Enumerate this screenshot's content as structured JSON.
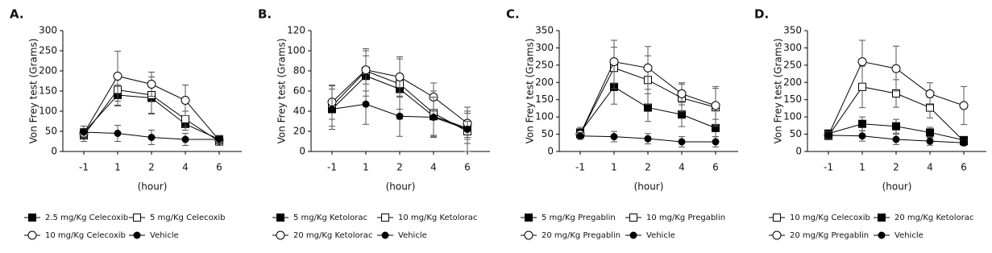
{
  "chart_data": [
    {
      "type": "line",
      "panel": "A.",
      "ylabel": "Von Frey test (Grams)",
      "xlabel": "(hour)",
      "categories": [
        "-1",
        "1",
        "2",
        "4",
        "6"
      ],
      "ylim": [
        0,
        300
      ],
      "yticks": [
        0,
        50,
        100,
        150,
        200,
        250,
        300
      ],
      "series": [
        {
          "name": "2.5 mg/Kg Celecoxib",
          "color": "#000000",
          "marker": "filled-square",
          "values": [
            47,
            140,
            133,
            68,
            30
          ],
          "errors": [
            10,
            25,
            40,
            15,
            10
          ]
        },
        {
          "name": "5 mg/Kg Celecoxib",
          "color": "#000000",
          "marker": "open-square",
          "values": [
            40,
            153,
            140,
            80,
            25
          ],
          "errors": [
            15,
            40,
            45,
            20,
            10
          ]
        },
        {
          "name": "10 mg/Kg Celecoxib",
          "color": "#000000",
          "marker": "open-circle",
          "values": [
            45,
            187,
            167,
            127,
            28
          ],
          "errors": [
            10,
            62,
            30,
            38,
            12
          ]
        },
        {
          "name": "Vehicle",
          "color": "#000000",
          "marker": "filled-circle",
          "values": [
            48,
            45,
            35,
            30,
            30
          ],
          "errors": [
            15,
            20,
            18,
            15,
            10
          ]
        }
      ]
    },
    {
      "type": "line",
      "panel": "B.",
      "ylabel": "Von Frey test (Grams)",
      "xlabel": "(hour)",
      "categories": [
        "-1",
        "1",
        "2",
        "4",
        "6"
      ],
      "ylim": [
        0,
        120
      ],
      "yticks": [
        0,
        20,
        40,
        60,
        80,
        100,
        120
      ],
      "series": [
        {
          "name": "5 mg/Kg Ketolorac",
          "color": "#000000",
          "marker": "filled-square",
          "values": [
            42,
            75,
            62,
            35,
            23
          ],
          "errors": [
            20,
            20,
            30,
            20,
            15
          ]
        },
        {
          "name": "10 mg/Kg Ketolorac",
          "color": "#000000",
          "marker": "open-square",
          "values": [
            45,
            80,
            67,
            38,
            20
          ],
          "errors": [
            20,
            20,
            25,
            22,
            20
          ]
        },
        {
          "name": "20 mg/Kg Ketolorac",
          "color": "#000000",
          "marker": "open-circle",
          "values": [
            49,
            81,
            74,
            54,
            28
          ],
          "errors": [
            17,
            21,
            20,
            14,
            16
          ]
        },
        {
          "name": "Vehicle",
          "color": "#000000",
          "marker": "filled-circle",
          "values": [
            42,
            47,
            35,
            34,
            22
          ],
          "errors": [
            20,
            20,
            20,
            20,
            8
          ]
        }
      ]
    },
    {
      "type": "line",
      "panel": "C.",
      "ylabel": "Von Frey test (Grams)",
      "xlabel": "(hour)",
      "categories": [
        "-1",
        "1",
        "2",
        "4",
        "6"
      ],
      "ylim": [
        0,
        350
      ],
      "yticks": [
        0,
        50,
        100,
        150,
        200,
        250,
        300,
        350
      ],
      "series": [
        {
          "name": "5 mg/Kg Pregablin",
          "color": "#000000",
          "marker": "filled-square",
          "values": [
            55,
            187,
            127,
            107,
            68
          ],
          "errors": [
            15,
            50,
            40,
            35,
            25
          ]
        },
        {
          "name": "10 mg/Kg Pregablin",
          "color": "#000000",
          "marker": "open-square",
          "values": [
            50,
            242,
            207,
            155,
            128
          ],
          "errors": [
            10,
            60,
            70,
            40,
            55
          ]
        },
        {
          "name": "20 mg/Kg Pregablin",
          "color": "#000000",
          "marker": "open-circle",
          "values": [
            50,
            260,
            242,
            167,
            133
          ],
          "errors": [
            10,
            62,
            62,
            32,
            55
          ]
        },
        {
          "name": "Vehicle",
          "color": "#000000",
          "marker": "filled-circle",
          "values": [
            45,
            43,
            37,
            28,
            28
          ],
          "errors": [
            10,
            15,
            15,
            15,
            15
          ]
        }
      ]
    },
    {
      "type": "line",
      "panel": "D.",
      "ylabel": "Von Frey test (Grams)",
      "xlabel": "(hour)",
      "categories": [
        "-1",
        "1",
        "2",
        "4",
        "6"
      ],
      "ylim": [
        0,
        350
      ],
      "yticks": [
        0,
        50,
        100,
        150,
        200,
        250,
        300,
        350
      ],
      "series": [
        {
          "name": "10 mg/Kg Celecoxib",
          "color": "#000000",
          "marker": "open-square",
          "values": [
            45,
            187,
            168,
            127,
            30
          ],
          "errors": [
            10,
            60,
            40,
            30,
            10
          ]
        },
        {
          "name": "20 mg/Kg Ketolorac",
          "color": "#000000",
          "marker": "filled-square",
          "values": [
            52,
            80,
            73,
            55,
            33
          ],
          "errors": [
            10,
            20,
            20,
            15,
            10
          ]
        },
        {
          "name": "20 mg/Kg Pregablin",
          "color": "#000000",
          "marker": "open-circle",
          "values": [
            47,
            260,
            240,
            167,
            133
          ],
          "errors": [
            10,
            62,
            65,
            32,
            55
          ]
        },
        {
          "name": "Vehicle",
          "color": "#000000",
          "marker": "filled-circle",
          "values": [
            47,
            45,
            35,
            30,
            25
          ],
          "errors": [
            10,
            15,
            15,
            12,
            8
          ]
        }
      ]
    }
  ]
}
